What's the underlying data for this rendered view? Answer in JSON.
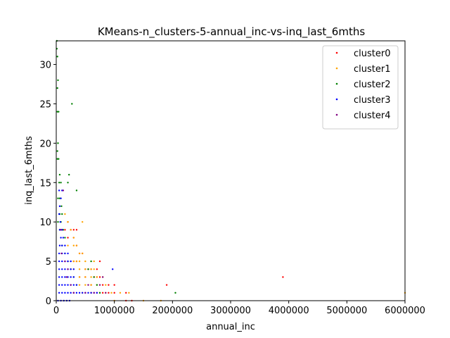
{
  "chart_data": {
    "type": "scatter",
    "title": "KMeans-n_clusters-5-annual_inc-vs-inq_last_6mths",
    "xlabel": "annual_inc",
    "ylabel": "inq_last_6mths",
    "xlim": [
      0,
      6000000
    ],
    "ylim": [
      0,
      33
    ],
    "xticks": [
      0,
      1000000,
      2000000,
      3000000,
      4000000,
      5000000,
      6000000
    ],
    "xtick_labels": [
      "0",
      "1000000",
      "2000000",
      "3000000",
      "4000000",
      "5000000",
      "6000000"
    ],
    "yticks": [
      0,
      5,
      10,
      15,
      20,
      25,
      30
    ],
    "ytick_labels": [
      "0",
      "5",
      "10",
      "15",
      "20",
      "25",
      "30"
    ],
    "grid": false,
    "legend_position": "top-right",
    "series": [
      {
        "name": "cluster0",
        "color": "#ff0000",
        "points": [
          [
            100000,
            9
          ],
          [
            150000,
            9
          ],
          [
            200000,
            10
          ],
          [
            250000,
            9
          ],
          [
            300000,
            9
          ],
          [
            350000,
            9
          ],
          [
            200000,
            8
          ],
          [
            300000,
            8
          ],
          [
            350000,
            7
          ],
          [
            400000,
            6
          ],
          [
            450000,
            6
          ],
          [
            300000,
            5
          ],
          [
            350000,
            5
          ],
          [
            750000,
            5
          ],
          [
            500000,
            4
          ],
          [
            550000,
            4
          ],
          [
            600000,
            4
          ],
          [
            700000,
            4
          ],
          [
            400000,
            3
          ],
          [
            500000,
            3
          ],
          [
            650000,
            3
          ],
          [
            700000,
            3
          ],
          [
            750000,
            3
          ],
          [
            600000,
            2
          ],
          [
            800000,
            2
          ],
          [
            900000,
            2
          ],
          [
            1000000,
            2
          ],
          [
            600000,
            1
          ],
          [
            700000,
            1
          ],
          [
            800000,
            1
          ],
          [
            900000,
            1
          ],
          [
            1000000,
            1
          ],
          [
            1200000,
            1
          ],
          [
            1300000,
            0
          ],
          [
            1200000,
            0
          ],
          [
            1900000,
            2
          ],
          [
            3900000,
            3
          ]
        ]
      },
      {
        "name": "cluster1",
        "color": "#ffa500",
        "points": [
          [
            150000,
            11
          ],
          [
            200000,
            10
          ],
          [
            250000,
            9
          ],
          [
            300000,
            8
          ],
          [
            450000,
            10
          ],
          [
            200000,
            7
          ],
          [
            300000,
            7
          ],
          [
            350000,
            7
          ],
          [
            400000,
            6
          ],
          [
            450000,
            6
          ],
          [
            200000,
            5
          ],
          [
            300000,
            5
          ],
          [
            350000,
            5
          ],
          [
            400000,
            5
          ],
          [
            500000,
            5
          ],
          [
            650000,
            5
          ],
          [
            300000,
            4
          ],
          [
            400000,
            4
          ],
          [
            500000,
            4
          ],
          [
            600000,
            4
          ],
          [
            650000,
            4
          ],
          [
            400000,
            3
          ],
          [
            500000,
            3
          ],
          [
            600000,
            3
          ],
          [
            700000,
            3
          ],
          [
            800000,
            3
          ],
          [
            400000,
            2
          ],
          [
            500000,
            2
          ],
          [
            600000,
            2
          ],
          [
            700000,
            2
          ],
          [
            850000,
            2
          ],
          [
            300000,
            1
          ],
          [
            450000,
            1
          ],
          [
            600000,
            1
          ],
          [
            750000,
            1
          ],
          [
            850000,
            1
          ],
          [
            950000,
            1
          ],
          [
            1100000,
            1
          ],
          [
            1250000,
            1
          ],
          [
            1000000,
            0
          ],
          [
            1500000,
            0
          ],
          [
            1800000,
            0
          ],
          [
            6000000,
            1
          ]
        ]
      },
      {
        "name": "cluster2",
        "color": "#008000",
        "points": [
          [
            10000,
            33
          ],
          [
            10000,
            32
          ],
          [
            20000,
            31
          ],
          [
            30000,
            28
          ],
          [
            20000,
            27
          ],
          [
            20000,
            24
          ],
          [
            40000,
            24
          ],
          [
            270000,
            25
          ],
          [
            30000,
            20
          ],
          [
            20000,
            19
          ],
          [
            20000,
            18
          ],
          [
            40000,
            18
          ],
          [
            60000,
            16
          ],
          [
            220000,
            16
          ],
          [
            50000,
            15
          ],
          [
            80000,
            15
          ],
          [
            200000,
            15
          ],
          [
            350000,
            14
          ],
          [
            30000,
            13
          ],
          [
            60000,
            13
          ],
          [
            90000,
            12
          ],
          [
            60000,
            11
          ],
          [
            100000,
            11
          ],
          [
            30000,
            10
          ],
          [
            80000,
            10
          ],
          [
            120000,
            9
          ],
          [
            60000,
            9
          ],
          [
            150000,
            8
          ],
          [
            100000,
            7
          ],
          [
            150000,
            6
          ],
          [
            200000,
            5
          ],
          [
            250000,
            4
          ],
          [
            300000,
            3
          ],
          [
            350000,
            2
          ],
          [
            600000,
            5
          ],
          [
            550000,
            4
          ],
          [
            650000,
            3
          ],
          [
            700000,
            2
          ],
          [
            750000,
            1
          ],
          [
            2050000,
            1
          ]
        ]
      },
      {
        "name": "cluster3",
        "color": "#0000ff",
        "points": [
          [
            50000,
            14
          ],
          [
            100000,
            14
          ],
          [
            80000,
            13
          ],
          [
            60000,
            12
          ],
          [
            50000,
            11
          ],
          [
            70000,
            10
          ],
          [
            60000,
            9
          ],
          [
            100000,
            9
          ],
          [
            80000,
            8
          ],
          [
            120000,
            8
          ],
          [
            60000,
            7
          ],
          [
            100000,
            7
          ],
          [
            150000,
            7
          ],
          [
            50000,
            6
          ],
          [
            100000,
            6
          ],
          [
            150000,
            6
          ],
          [
            200000,
            6
          ],
          [
            50000,
            5
          ],
          [
            100000,
            5
          ],
          [
            150000,
            5
          ],
          [
            200000,
            5
          ],
          [
            250000,
            5
          ],
          [
            50000,
            4
          ],
          [
            100000,
            4
          ],
          [
            150000,
            4
          ],
          [
            200000,
            4
          ],
          [
            250000,
            4
          ],
          [
            300000,
            4
          ],
          [
            970000,
            4
          ],
          [
            50000,
            3
          ],
          [
            100000,
            3
          ],
          [
            150000,
            3
          ],
          [
            200000,
            3
          ],
          [
            250000,
            3
          ],
          [
            300000,
            3
          ],
          [
            50000,
            2
          ],
          [
            100000,
            2
          ],
          [
            150000,
            2
          ],
          [
            200000,
            2
          ],
          [
            250000,
            2
          ],
          [
            300000,
            2
          ],
          [
            350000,
            2
          ],
          [
            50000,
            1
          ],
          [
            100000,
            1
          ],
          [
            150000,
            1
          ],
          [
            200000,
            1
          ],
          [
            250000,
            1
          ],
          [
            300000,
            1
          ],
          [
            350000,
            1
          ],
          [
            400000,
            1
          ],
          [
            450000,
            1
          ],
          [
            500000,
            1
          ],
          [
            550000,
            1
          ],
          [
            600000,
            1
          ],
          [
            650000,
            1
          ],
          [
            700000,
            1
          ],
          [
            30000,
            0
          ],
          [
            80000,
            0
          ],
          [
            130000,
            0
          ],
          [
            180000,
            0
          ],
          [
            230000,
            0
          ]
        ]
      },
      {
        "name": "cluster4",
        "color": "#800080",
        "points": [
          [
            120000,
            14
          ],
          [
            80000,
            9
          ],
          [
            90000,
            6
          ],
          [
            150000,
            5
          ],
          [
            200000,
            4
          ],
          [
            180000,
            3
          ],
          [
            250000,
            2
          ],
          [
            300000,
            1
          ],
          [
            500000,
            1
          ],
          [
            650000,
            1
          ],
          [
            800000,
            3
          ],
          [
            750000,
            2
          ],
          [
            550000,
            2
          ],
          [
            850000,
            1
          ]
        ]
      }
    ]
  }
}
